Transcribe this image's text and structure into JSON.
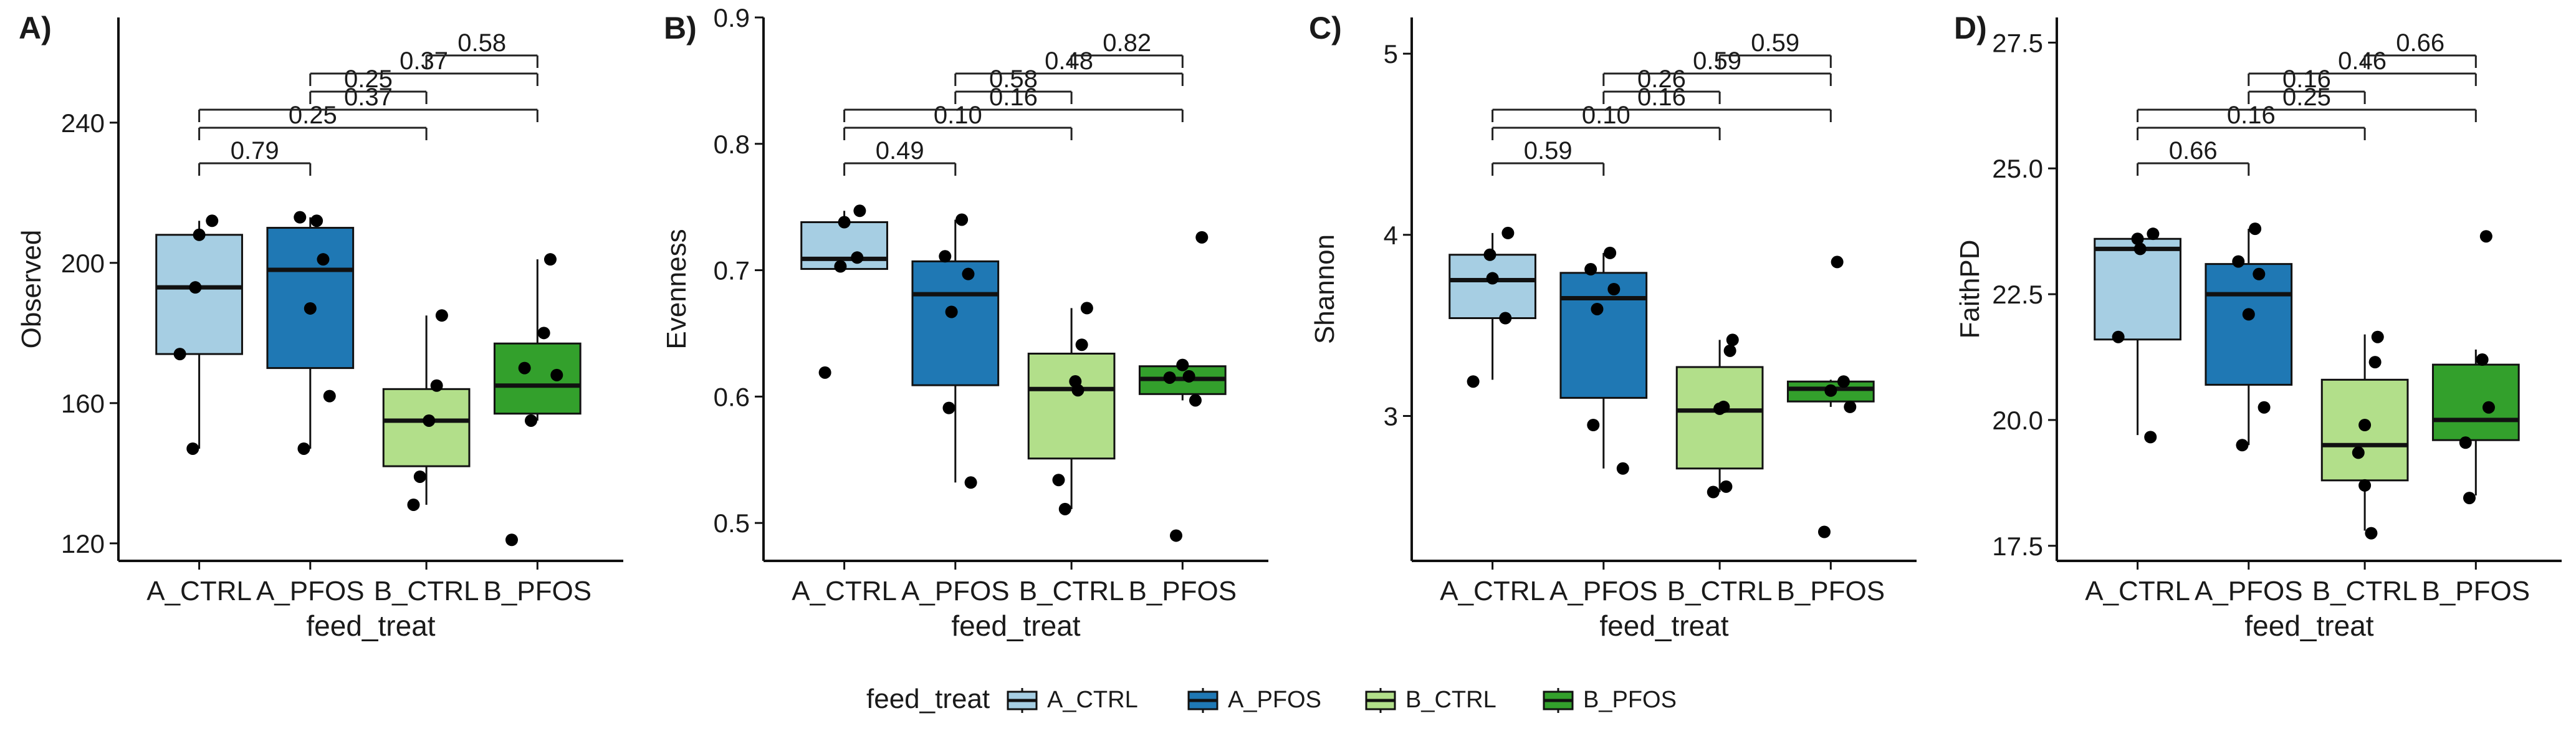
{
  "figure": {
    "legend": {
      "title": "feed_treat",
      "entries": [
        {
          "label": "A_CTRL",
          "color": "#a6cee3"
        },
        {
          "label": "A_PFOS",
          "color": "#1f78b4"
        },
        {
          "label": "B_CTRL",
          "color": "#b2df8a"
        },
        {
          "label": "B_PFOS",
          "color": "#33a02c"
        }
      ],
      "placement": "bottom-center"
    }
  },
  "chart_data": [
    {
      "panel_label": "A)",
      "type": "box",
      "xlabel": "feed_treat",
      "ylabel": "Observed",
      "categories": [
        "A_CTRL",
        "A_PFOS",
        "B_CTRL",
        "B_PFOS"
      ],
      "ylim": [
        115,
        270
      ],
      "yticks": [
        120,
        160,
        200,
        240
      ],
      "ytick_labels": [
        "120",
        "160",
        "200",
        "240"
      ],
      "boxes": [
        {
          "min": 147,
          "q1": 174,
          "median": 193,
          "q3": 208,
          "max": 212
        },
        {
          "min": 147,
          "q1": 170,
          "median": 198,
          "q3": 210,
          "max": 213
        },
        {
          "min": 131,
          "q1": 142,
          "median": 155,
          "q3": 164,
          "max": 185
        },
        {
          "min": 155,
          "q1": 157,
          "median": 165,
          "q3": 177,
          "max": 201
        }
      ],
      "points": [
        [
          [
            -0.05,
            147
          ],
          [
            -0.15,
            174
          ],
          [
            -0.03,
            193
          ],
          [
            0.0,
            208
          ],
          [
            0.1,
            212
          ]
        ],
        [
          [
            -0.05,
            147
          ],
          [
            0.15,
            162
          ],
          [
            0.0,
            187
          ],
          [
            0.1,
            201
          ],
          [
            -0.08,
            213
          ],
          [
            0.05,
            212
          ]
        ],
        [
          [
            -0.1,
            131
          ],
          [
            -0.05,
            139
          ],
          [
            0.02,
            155
          ],
          [
            0.08,
            165
          ],
          [
            0.12,
            185
          ]
        ],
        [
          [
            -0.2,
            121
          ],
          [
            -0.05,
            155
          ],
          [
            -0.1,
            170
          ],
          [
            0.15,
            168
          ],
          [
            0.05,
            180
          ],
          [
            0.1,
            201
          ]
        ]
      ],
      "brackets": [
        {
          "from": 0,
          "to": 1,
          "label": "0.79",
          "level": 0
        },
        {
          "from": 0,
          "to": 2,
          "label": "0.25",
          "level": 1
        },
        {
          "from": 0,
          "to": 3,
          "label": "0.37",
          "level": 2
        },
        {
          "from": 1,
          "to": 2,
          "label": "0.25",
          "level": 3
        },
        {
          "from": 1,
          "to": 3,
          "label": "0.37",
          "level": 4
        },
        {
          "from": 2,
          "to": 3,
          "label": "0.58",
          "level": 5
        }
      ]
    },
    {
      "panel_label": "B)",
      "type": "box",
      "xlabel": "feed_treat",
      "ylabel": "Evenness",
      "categories": [
        "A_CTRL",
        "A_PFOS",
        "B_CTRL",
        "B_PFOS"
      ],
      "ylim": [
        0.47,
        0.9
      ],
      "yticks": [
        0.5,
        0.6,
        0.7,
        0.8,
        0.9
      ],
      "ytick_labels": [
        "0.5",
        "0.6",
        "0.7",
        "0.8",
        "0.9"
      ],
      "boxes": [
        {
          "min": 0.7,
          "q1": 0.701,
          "median": 0.709,
          "q3": 0.738,
          "max": 0.747
        },
        {
          "min": 0.532,
          "q1": 0.609,
          "median": 0.681,
          "q3": 0.707,
          "max": 0.74
        },
        {
          "min": 0.511,
          "q1": 0.551,
          "median": 0.606,
          "q3": 0.634,
          "max": 0.67
        },
        {
          "min": 0.597,
          "q1": 0.602,
          "median": 0.614,
          "q3": 0.624,
          "max": 0.625
        }
      ],
      "points": [
        [
          [
            -0.15,
            0.619
          ],
          [
            -0.03,
            0.703
          ],
          [
            0.1,
            0.71
          ],
          [
            0.0,
            0.738
          ],
          [
            0.12,
            0.747
          ]
        ],
        [
          [
            0.12,
            0.532
          ],
          [
            -0.05,
            0.591
          ],
          [
            -0.03,
            0.667
          ],
          [
            0.1,
            0.697
          ],
          [
            -0.08,
            0.711
          ],
          [
            0.05,
            0.74
          ]
        ],
        [
          [
            -0.05,
            0.511
          ],
          [
            -0.1,
            0.534
          ],
          [
            0.05,
            0.605
          ],
          [
            0.03,
            0.612
          ],
          [
            0.08,
            0.641
          ],
          [
            0.12,
            0.67
          ]
        ],
        [
          [
            -0.05,
            0.49
          ],
          [
            0.1,
            0.597
          ],
          [
            -0.1,
            0.615
          ],
          [
            0.05,
            0.616
          ],
          [
            0.0,
            0.625
          ],
          [
            0.15,
            0.726
          ]
        ]
      ],
      "brackets": [
        {
          "from": 0,
          "to": 1,
          "label": "0.49",
          "level": 0
        },
        {
          "from": 0,
          "to": 2,
          "label": "0.10",
          "level": 1
        },
        {
          "from": 0,
          "to": 3,
          "label": "0.16",
          "level": 2
        },
        {
          "from": 1,
          "to": 2,
          "label": "0.58",
          "level": 3
        },
        {
          "from": 1,
          "to": 3,
          "label": "0.48",
          "level": 4
        },
        {
          "from": 2,
          "to": 3,
          "label": "0.82",
          "level": 5
        }
      ]
    },
    {
      "panel_label": "C)",
      "type": "box",
      "xlabel": "feed_treat",
      "ylabel": "Shannon",
      "categories": [
        "A_CTRL",
        "A_PFOS",
        "B_CTRL",
        "B_PFOS"
      ],
      "ylim": [
        2.2,
        5.2
      ],
      "yticks": [
        3,
        4,
        5
      ],
      "ytick_labels": [
        "3",
        "4",
        "5"
      ],
      "boxes": [
        {
          "min": 3.2,
          "q1": 3.54,
          "median": 3.75,
          "q3": 3.89,
          "max": 4.01
        },
        {
          "min": 2.71,
          "q1": 3.1,
          "median": 3.65,
          "q3": 3.79,
          "max": 3.9
        },
        {
          "min": 2.58,
          "q1": 2.71,
          "median": 3.03,
          "q3": 3.27,
          "max": 3.42
        },
        {
          "min": 3.05,
          "q1": 3.08,
          "median": 3.15,
          "q3": 3.19,
          "max": 3.2
        }
      ],
      "points": [
        [
          [
            -0.15,
            3.19
          ],
          [
            0.1,
            3.54
          ],
          [
            0.0,
            3.76
          ],
          [
            -0.02,
            3.89
          ],
          [
            0.12,
            4.01
          ]
        ],
        [
          [
            0.15,
            2.71
          ],
          [
            -0.08,
            2.95
          ],
          [
            -0.05,
            3.59
          ],
          [
            0.08,
            3.7
          ],
          [
            -0.1,
            3.81
          ],
          [
            0.05,
            3.9
          ]
        ],
        [
          [
            -0.05,
            2.58
          ],
          [
            0.05,
            2.61
          ],
          [
            0.0,
            3.04
          ],
          [
            0.03,
            3.05
          ],
          [
            0.08,
            3.36
          ],
          [
            0.1,
            3.42
          ]
        ],
        [
          [
            -0.05,
            2.36
          ],
          [
            0.15,
            3.05
          ],
          [
            0.0,
            3.14
          ],
          [
            0.1,
            3.19
          ],
          [
            0.05,
            3.85
          ]
        ]
      ],
      "brackets": [
        {
          "from": 0,
          "to": 1,
          "label": "0.59",
          "level": 0
        },
        {
          "from": 0,
          "to": 2,
          "label": "0.10",
          "level": 1
        },
        {
          "from": 0,
          "to": 3,
          "label": "0.16",
          "level": 2
        },
        {
          "from": 1,
          "to": 2,
          "label": "0.26",
          "level": 3
        },
        {
          "from": 1,
          "to": 3,
          "label": "0.59",
          "level": 4
        },
        {
          "from": 2,
          "to": 3,
          "label": "0.59",
          "level": 5
        }
      ]
    },
    {
      "panel_label": "D)",
      "type": "box",
      "xlabel": "feed_treat",
      "ylabel": "FaithPD",
      "categories": [
        "A_CTRL",
        "A_PFOS",
        "B_CTRL",
        "B_PFOS"
      ],
      "ylim": [
        17.2,
        28.0
      ],
      "yticks": [
        17.5,
        20.0,
        22.5,
        25.0,
        27.5
      ],
      "ytick_labels": [
        "17.5",
        "20.0",
        "22.5",
        "25.0",
        "27.5"
      ],
      "boxes": [
        {
          "min": 19.7,
          "q1": 21.6,
          "median": 23.4,
          "q3": 23.6,
          "max": 23.7
        },
        {
          "min": 19.5,
          "q1": 20.7,
          "median": 22.5,
          "q3": 23.1,
          "max": 23.8
        },
        {
          "min": 17.8,
          "q1": 18.8,
          "median": 19.5,
          "q3": 20.8,
          "max": 21.7
        },
        {
          "min": 18.5,
          "q1": 19.6,
          "median": 20.0,
          "q3": 21.1,
          "max": 21.4
        }
      ],
      "points": [
        [
          [
            -0.15,
            21.65
          ],
          [
            0.1,
            19.66
          ],
          [
            0.02,
            23.4
          ],
          [
            0.0,
            23.6
          ],
          [
            0.12,
            23.7
          ]
        ],
        [
          [
            -0.05,
            19.5
          ],
          [
            0.12,
            20.25
          ],
          [
            0.0,
            22.1
          ],
          [
            0.08,
            22.9
          ],
          [
            -0.08,
            23.15
          ],
          [
            0.05,
            23.8
          ]
        ],
        [
          [
            0.05,
            17.75
          ],
          [
            0.0,
            18.7
          ],
          [
            -0.05,
            19.35
          ],
          [
            0.0,
            19.9
          ],
          [
            0.08,
            21.15
          ],
          [
            0.1,
            21.65
          ]
        ],
        [
          [
            -0.05,
            18.45
          ],
          [
            -0.08,
            19.55
          ],
          [
            0.1,
            20.25
          ],
          [
            0.05,
            21.2
          ],
          [
            0.08,
            23.65
          ]
        ]
      ],
      "brackets": [
        {
          "from": 0,
          "to": 1,
          "label": "0.66",
          "level": 0
        },
        {
          "from": 0,
          "to": 2,
          "label": "0.16",
          "level": 1
        },
        {
          "from": 0,
          "to": 3,
          "label": "0.25",
          "level": 2
        },
        {
          "from": 1,
          "to": 2,
          "label": "0.16",
          "level": 3
        },
        {
          "from": 1,
          "to": 3,
          "label": "0.46",
          "level": 4
        },
        {
          "from": 2,
          "to": 3,
          "label": "0.66",
          "level": 5
        }
      ]
    }
  ]
}
